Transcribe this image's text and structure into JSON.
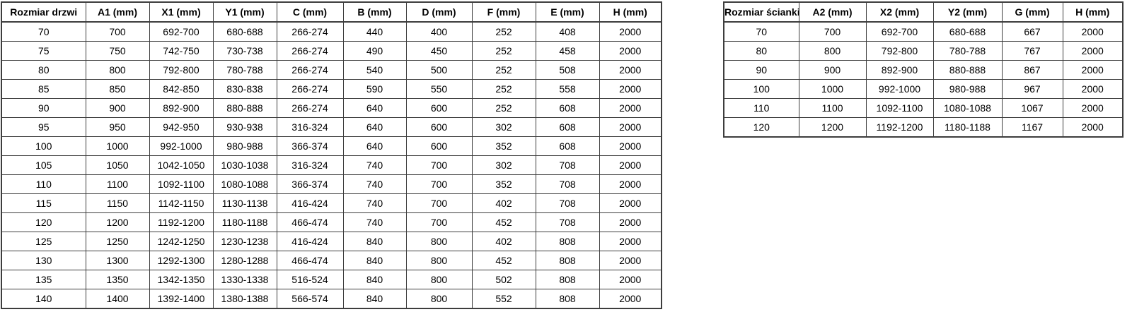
{
  "colors": {
    "border": "#3d3d3d",
    "text": "#000000",
    "background": "#ffffff"
  },
  "door_table": {
    "name": "door-size-table",
    "headers": [
      "Rozmiar drzwi",
      "A1 (mm)",
      "X1 (mm)",
      "Y1 (mm)",
      "C (mm)",
      "B (mm)",
      "D (mm)",
      "F (mm)",
      "E (mm)",
      "H (mm)"
    ],
    "rows": [
      [
        "70",
        "700",
        "692-700",
        "680-688",
        "266-274",
        "440",
        "400",
        "252",
        "408",
        "2000"
      ],
      [
        "75",
        "750",
        "742-750",
        "730-738",
        "266-274",
        "490",
        "450",
        "252",
        "458",
        "2000"
      ],
      [
        "80",
        "800",
        "792-800",
        "780-788",
        "266-274",
        "540",
        "500",
        "252",
        "508",
        "2000"
      ],
      [
        "85",
        "850",
        "842-850",
        "830-838",
        "266-274",
        "590",
        "550",
        "252",
        "558",
        "2000"
      ],
      [
        "90",
        "900",
        "892-900",
        "880-888",
        "266-274",
        "640",
        "600",
        "252",
        "608",
        "2000"
      ],
      [
        "95",
        "950",
        "942-950",
        "930-938",
        "316-324",
        "640",
        "600",
        "302",
        "608",
        "2000"
      ],
      [
        "100",
        "1000",
        "992-1000",
        "980-988",
        "366-374",
        "640",
        "600",
        "352",
        "608",
        "2000"
      ],
      [
        "105",
        "1050",
        "1042-1050",
        "1030-1038",
        "316-324",
        "740",
        "700",
        "302",
        "708",
        "2000"
      ],
      [
        "110",
        "1100",
        "1092-1100",
        "1080-1088",
        "366-374",
        "740",
        "700",
        "352",
        "708",
        "2000"
      ],
      [
        "115",
        "1150",
        "1142-1150",
        "1130-1138",
        "416-424",
        "740",
        "700",
        "402",
        "708",
        "2000"
      ],
      [
        "120",
        "1200",
        "1192-1200",
        "1180-1188",
        "466-474",
        "740",
        "700",
        "452",
        "708",
        "2000"
      ],
      [
        "125",
        "1250",
        "1242-1250",
        "1230-1238",
        "416-424",
        "840",
        "800",
        "402",
        "808",
        "2000"
      ],
      [
        "130",
        "1300",
        "1292-1300",
        "1280-1288",
        "466-474",
        "840",
        "800",
        "452",
        "808",
        "2000"
      ],
      [
        "135",
        "1350",
        "1342-1350",
        "1330-1338",
        "516-524",
        "840",
        "800",
        "502",
        "808",
        "2000"
      ],
      [
        "140",
        "1400",
        "1392-1400",
        "1380-1388",
        "566-574",
        "840",
        "800",
        "552",
        "808",
        "2000"
      ]
    ]
  },
  "wall_table": {
    "name": "wall-size-table",
    "headers": [
      "Rozmiar ścianki",
      "A2 (mm)",
      "X2 (mm)",
      "Y2 (mm)",
      "G (mm)",
      "H (mm)"
    ],
    "rows": [
      [
        "70",
        "700",
        "692-700",
        "680-688",
        "667",
        "2000"
      ],
      [
        "80",
        "800",
        "792-800",
        "780-788",
        "767",
        "2000"
      ],
      [
        "90",
        "900",
        "892-900",
        "880-888",
        "867",
        "2000"
      ],
      [
        "100",
        "1000",
        "992-1000",
        "980-988",
        "967",
        "2000"
      ],
      [
        "110",
        "1100",
        "1092-1100",
        "1080-1088",
        "1067",
        "2000"
      ],
      [
        "120",
        "1200",
        "1192-1200",
        "1180-1188",
        "1167",
        "2000"
      ]
    ]
  }
}
